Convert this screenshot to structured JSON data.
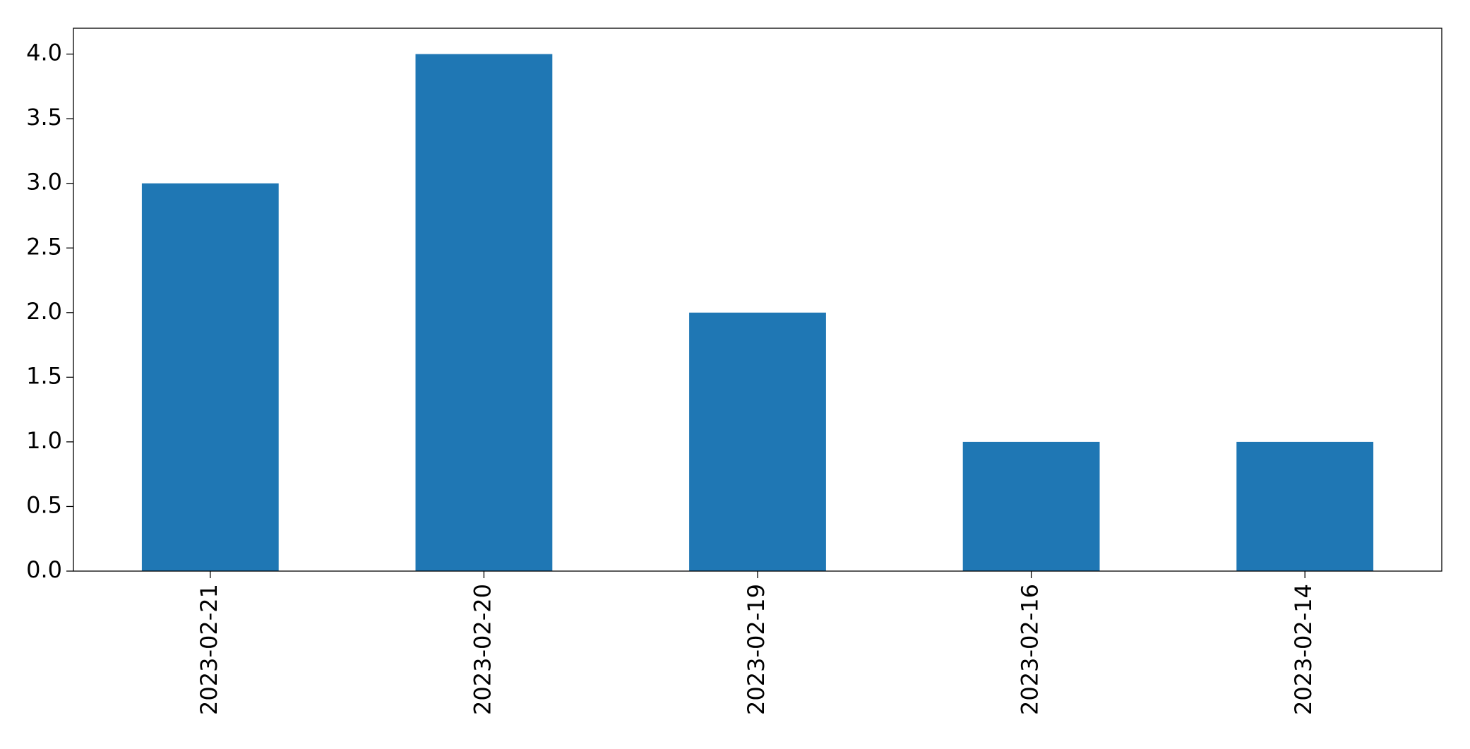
{
  "chart_data": {
    "type": "bar",
    "categories": [
      "2023-02-21",
      "2023-02-20",
      "2023-02-19",
      "2023-02-16",
      "2023-02-14"
    ],
    "values": [
      3,
      4,
      2,
      1,
      1
    ],
    "color": "#1f77b4",
    "ylim": [
      0,
      4.2
    ],
    "yticks": [
      {
        "value": 0,
        "label": "0.0"
      },
      0.5,
      {
        "value": 1,
        "label": "1.0"
      },
      1.5,
      {
        "value": 2,
        "label": "2.0"
      },
      2.5,
      {
        "value": 3,
        "label": "3.0"
      },
      3.5,
      {
        "value": 4,
        "label": "4.0"
      }
    ],
    "grid": false
  }
}
